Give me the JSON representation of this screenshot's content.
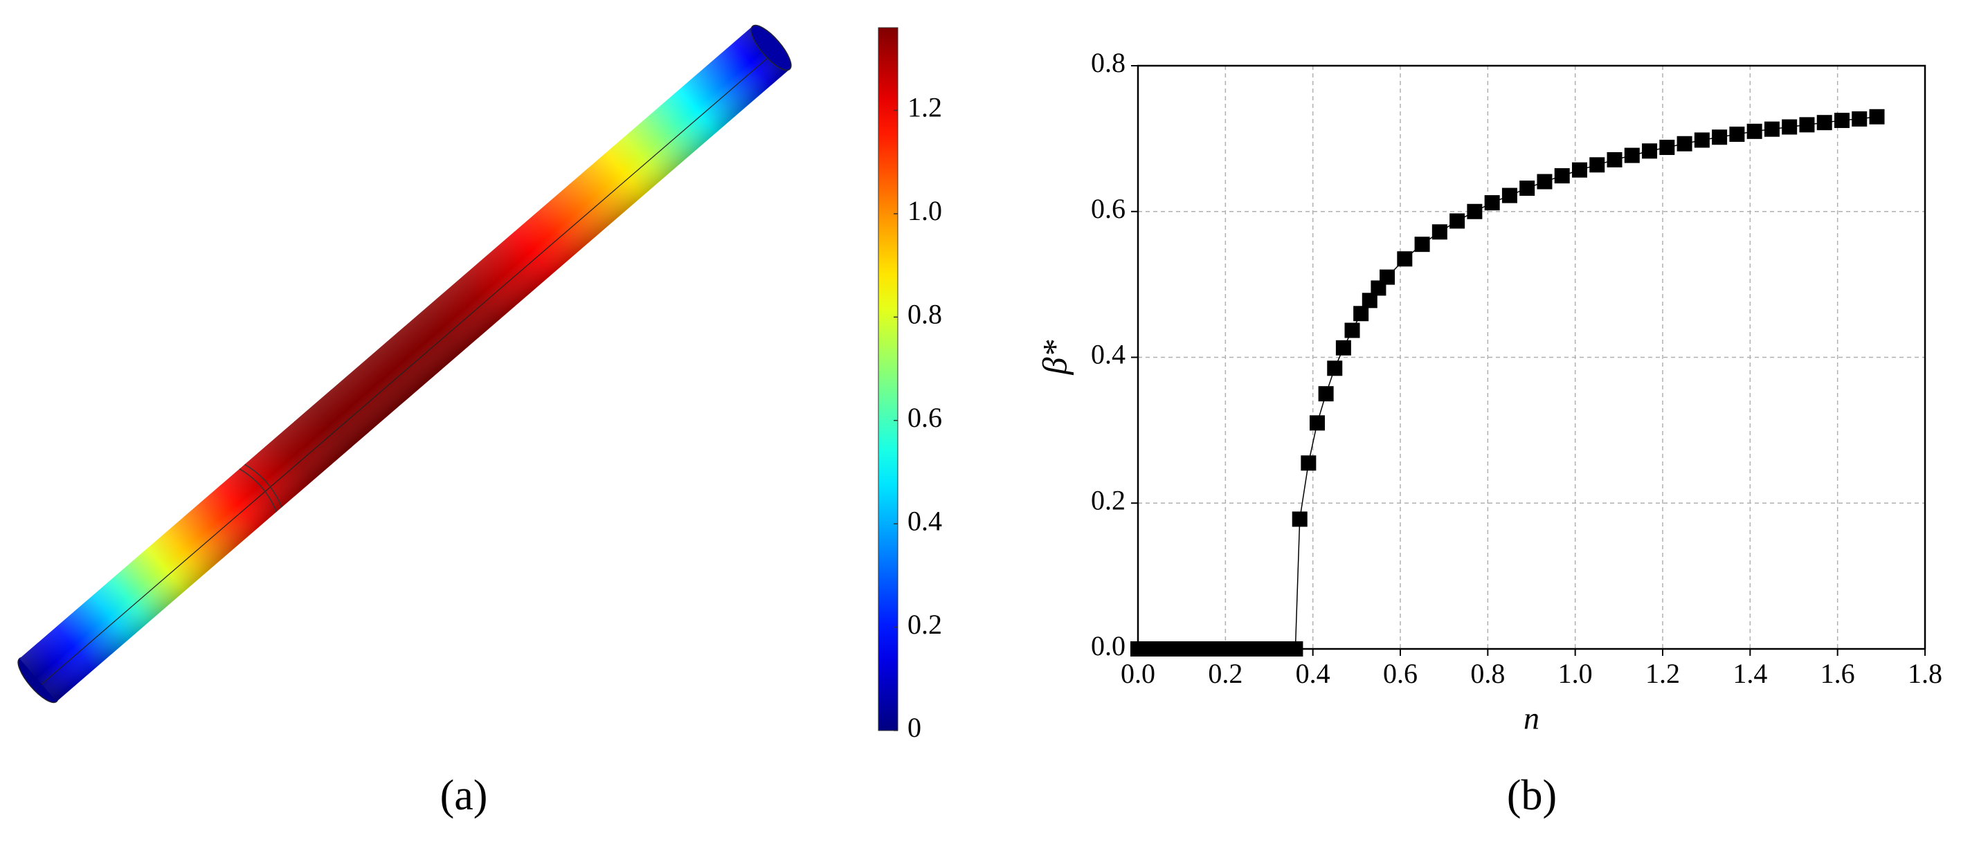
{
  "chart_data": [
    {
      "type": "colormap",
      "caption": "(a)",
      "values": [
        0.02,
        0.2,
        0.45,
        0.7,
        0.92,
        1.1,
        1.25,
        1.33,
        1.36,
        1.36,
        1.36,
        1.35,
        1.32,
        1.25,
        1.15,
        1.02,
        0.88,
        0.7,
        0.5,
        0.28,
        0.05
      ],
      "clim": [
        0,
        1.36
      ],
      "cticks": [
        0,
        0.2,
        0.4,
        0.6,
        0.8,
        {
          "value": 1,
          "label": "1.0"
        },
        1.2
      ]
    },
    {
      "type": "line",
      "caption": "(b)",
      "xlabel": "n",
      "ylabel": "β*",
      "x": [
        0,
        0.02,
        0.04,
        0.06,
        0.08,
        0.1,
        0.12,
        0.14,
        0.16,
        0.18,
        0.2,
        0.22,
        0.24,
        0.26,
        0.28,
        0.3,
        0.32,
        0.34,
        0.36,
        0.37,
        0.39,
        0.41,
        0.43,
        0.45,
        0.47,
        0.49,
        0.51,
        0.53,
        0.55,
        0.57,
        0.61,
        0.65,
        0.69,
        0.73,
        0.77,
        0.81,
        0.85,
        0.89,
        0.93,
        0.97,
        1.01,
        1.05,
        1.09,
        1.13,
        1.17,
        1.21,
        1.25,
        1.29,
        1.33,
        1.37,
        1.41,
        1.45,
        1.49,
        1.53,
        1.57,
        1.61,
        1.65,
        1.69
      ],
      "series": [
        {
          "color": "#000000",
          "values": [
            0,
            0,
            0,
            0,
            0,
            0,
            0,
            0,
            0,
            0,
            0,
            0,
            0,
            0,
            0,
            0,
            0,
            0,
            0,
            0.178,
            0.255,
            0.31,
            0.35,
            0.385,
            0.413,
            0.437,
            0.46,
            0.478,
            0.495,
            0.51,
            0.535,
            0.555,
            0.572,
            0.587,
            0.6,
            0.612,
            0.622,
            0.632,
            0.641,
            0.649,
            0.657,
            0.664,
            0.671,
            0.677,
            0.683,
            0.688,
            0.693,
            0.698,
            0.702,
            0.706,
            0.71,
            0.713,
            0.716,
            0.719,
            0.722,
            0.725,
            0.727,
            0.73
          ]
        }
      ],
      "xlim": [
        0,
        1.8
      ],
      "xticks": [
        {
          "value": 0,
          "label": "0.0"
        },
        0.2,
        0.4,
        0.6,
        0.8,
        {
          "value": 1,
          "label": "1.0"
        },
        1.2,
        1.4,
        1.6,
        1.8
      ],
      "ylim": [
        0,
        0.8
      ],
      "yticks": [
        {
          "value": 0,
          "label": "0.0"
        },
        0.2,
        0.4,
        0.6,
        0.8
      ],
      "grid": true
    }
  ]
}
